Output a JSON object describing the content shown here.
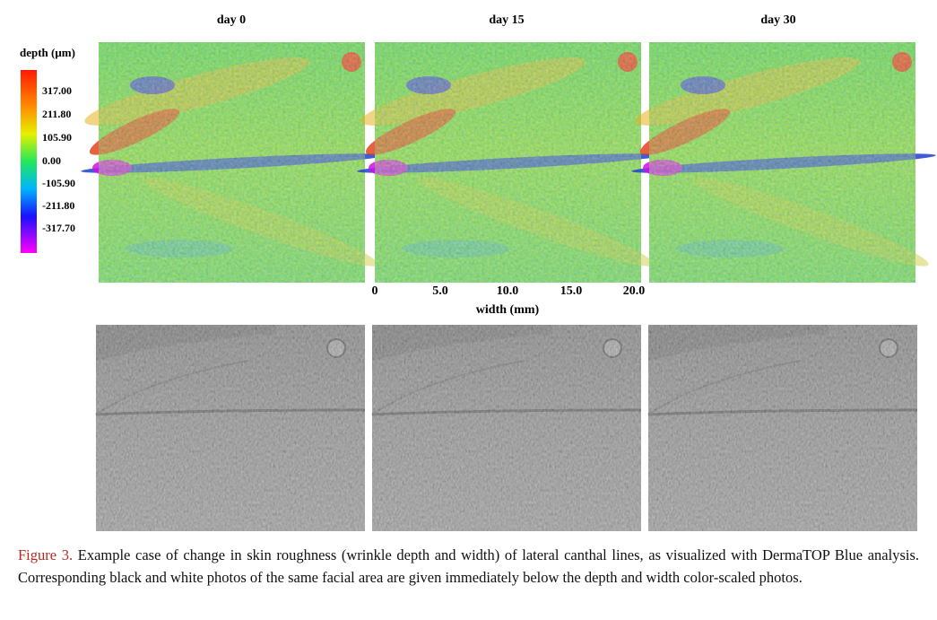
{
  "figure": {
    "panel_titles": [
      "day 0",
      "day 15",
      "day 30"
    ],
    "colorbar": {
      "label": "depth (μm)",
      "ticks": [
        "317.00",
        "211.80",
        "105.90",
        "0.00",
        "-105.90",
        "-211.80",
        "-317.70"
      ]
    },
    "x_axis": {
      "ticks": [
        "0",
        "5.0",
        "10.0",
        "15.0",
        "20.0"
      ],
      "label": "width (mm)"
    }
  },
  "caption": {
    "label": "Figure 3.",
    "text": "Example case of change in skin roughness (wrinkle depth and width) of lateral canthal lines, as visualized with DermaTOP Blue analysis. Corresponding black and white photos of the same facial area are given immediately below the depth and width color-scaled photos."
  }
}
